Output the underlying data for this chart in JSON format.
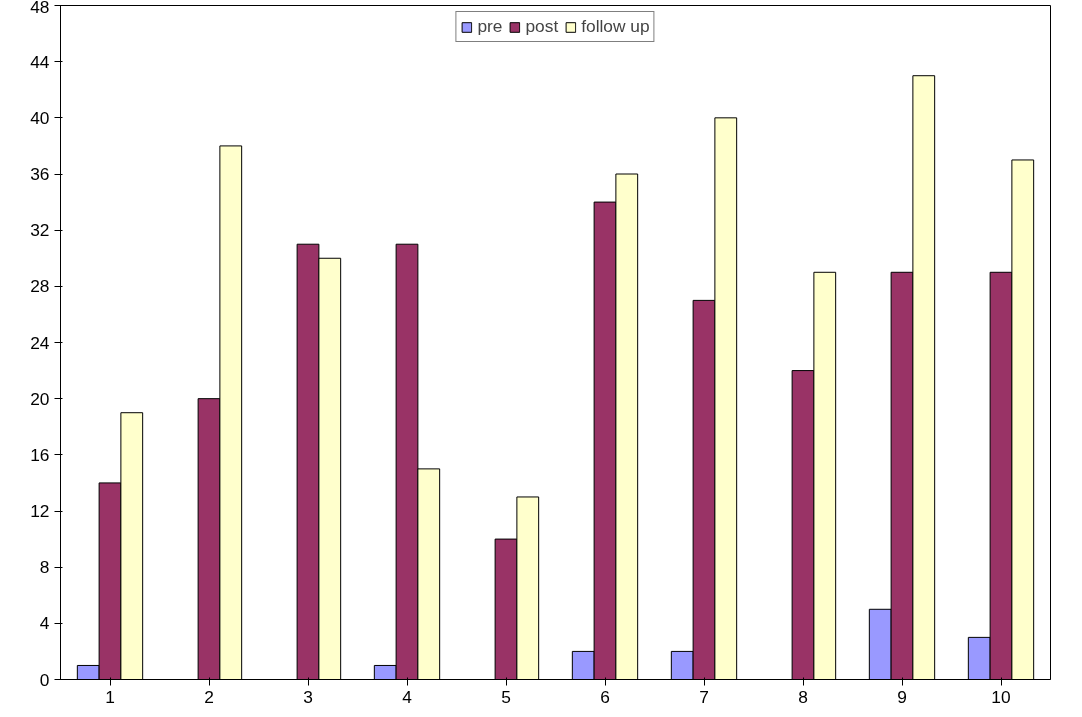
{
  "chart_data": {
    "type": "bar",
    "categories": [
      "1",
      "2",
      "3",
      "4",
      "5",
      "6",
      "7",
      "8",
      "9",
      "10"
    ],
    "series": [
      {
        "name": "pre",
        "color": "#9999ff",
        "values": [
          1,
          0,
          0,
          1,
          0,
          2,
          2,
          0,
          5,
          3
        ]
      },
      {
        "name": "post",
        "color": "#993366",
        "values": [
          14,
          20,
          31,
          31,
          10,
          34,
          27,
          22,
          29,
          29
        ]
      },
      {
        "name": "follow up",
        "color": "#ffffcc",
        "values": [
          19,
          38,
          30,
          15,
          13,
          36,
          40,
          29,
          43,
          37
        ]
      }
    ],
    "ylim": [
      0,
      48
    ],
    "yticks": [
      0,
      4,
      8,
      12,
      16,
      20,
      24,
      28,
      32,
      36,
      40,
      44,
      48
    ],
    "grid": false,
    "legend": "top"
  }
}
